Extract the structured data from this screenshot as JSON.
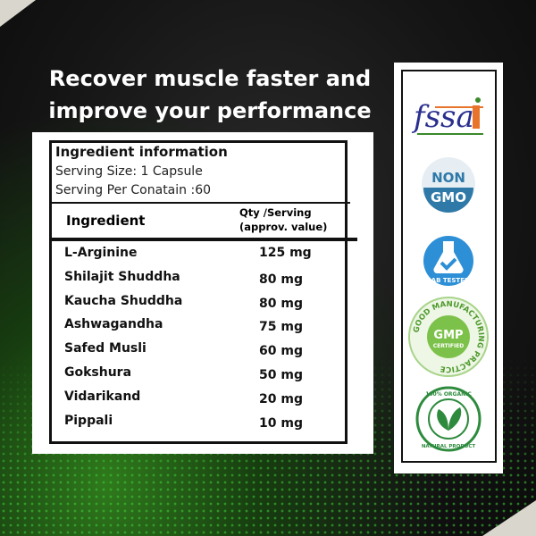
{
  "headline": {
    "line1": "Recover muscle faster and",
    "line2": "improve your performance"
  },
  "info": {
    "title": "Ingredient information",
    "serving_size": "Serving Size: 1 Capsule",
    "servings": "Serving Per Conatain :60"
  },
  "table": {
    "headers": {
      "ingredient": "Ingredient",
      "qty_line1": "Qty /Serving",
      "qty_line2": "(approv. value)"
    },
    "rows": [
      {
        "name": "L-Arginine",
        "qty": "125 mg"
      },
      {
        "name": "Shilajit Shuddha",
        "qty": "80 mg"
      },
      {
        "name": "Kaucha Shuddha",
        "qty": "80 mg"
      },
      {
        "name": "Ashwagandha",
        "qty": "75 mg"
      },
      {
        "name": "Safed Musli",
        "qty": "60 mg"
      },
      {
        "name": "Gokshura",
        "qty": "50 mg"
      },
      {
        "name": "Vidarikand",
        "qty": "20 mg"
      },
      {
        "name": "Pippali",
        "qty": "10 mg"
      }
    ]
  },
  "badges": {
    "fssai": "fssai",
    "nongmo": [
      "NON",
      "GMO"
    ],
    "lab": "LAB TESTED",
    "gmp": [
      "GMP",
      "CERTIFIED",
      "GOOD MANUFACTURING PRACTICE"
    ],
    "organic": [
      "100% ORGANIC",
      "NATURAL PRODUCT"
    ]
  },
  "colors": {
    "fssai_blue": "#2a2f8f",
    "fssai_orange": "#e8732a",
    "gmo_blue": "#2f79a8",
    "lab_blue": "#2d8fd6",
    "gmp_green": "#7cc24a",
    "organic_green": "#2e8b3e"
  }
}
